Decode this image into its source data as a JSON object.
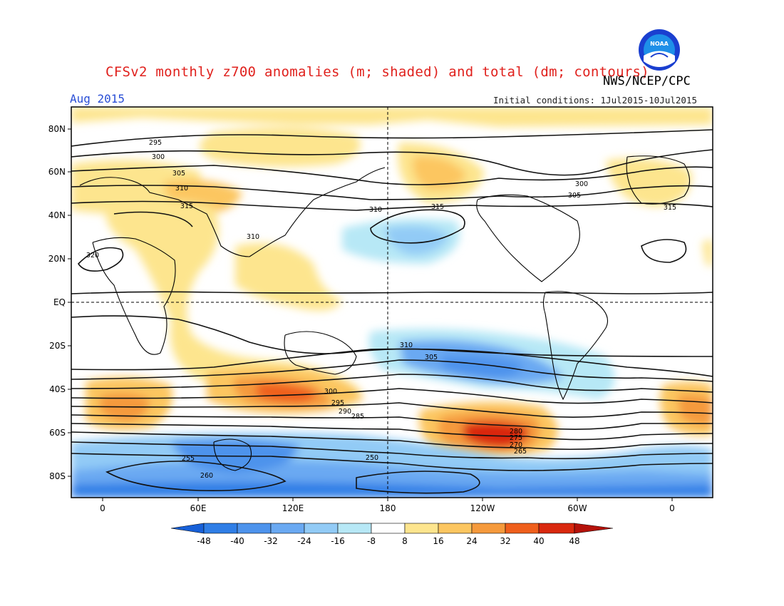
{
  "header": {
    "title": "CFSv2 monthly z700 anomalies (m; shaded) and total (dm; contours)",
    "agency": "NWS/NCEP/CPC",
    "month": "Aug 2015",
    "initial_conditions": "Initial conditions: 1Jul2015-10Jul2015",
    "logo_text": "NOAA"
  },
  "axes": {
    "lat_labels": [
      "80N",
      "60N",
      "40N",
      "20N",
      "EQ",
      "20S",
      "40S",
      "60S",
      "80S"
    ],
    "lon_labels": [
      "0",
      "60E",
      "120E",
      "180",
      "120W",
      "60W",
      "0"
    ]
  },
  "colorbar": {
    "labels": [
      "-48",
      "-40",
      "-32",
      "-24",
      "-16",
      "-8",
      "8",
      "16",
      "24",
      "32",
      "40",
      "48"
    ],
    "colors": [
      "#1760d8",
      "#2f7ee6",
      "#4d93ec",
      "#6aa9f2",
      "#92cbf6",
      "#b7e8f6",
      "#ffffff",
      "#fde58e",
      "#fcc660",
      "#f59a3c",
      "#ef5f1c",
      "#d9280e",
      "#b5120a"
    ]
  },
  "contour_labels": [
    "295",
    "300",
    "305",
    "310",
    "315",
    "320",
    "310",
    "315",
    "300",
    "305",
    "310",
    "315",
    "310",
    "305",
    "300",
    "295",
    "290",
    "285",
    "280",
    "275",
    "270",
    "265",
    "260",
    "255",
    "250"
  ]
}
